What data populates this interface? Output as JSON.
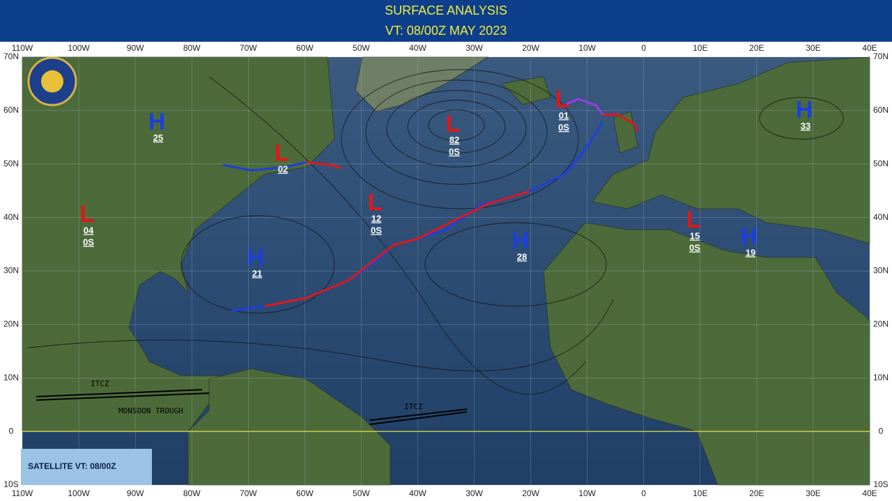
{
  "header": {
    "title": "SURFACE ANALYSIS",
    "valid_time": "VT: 08/00Z MAY 2023"
  },
  "longitude_labels": [
    "110W",
    "100W",
    "90W",
    "80W",
    "70W",
    "60W",
    "50W",
    "40W",
    "30W",
    "20W",
    "10W",
    "0",
    "10E",
    "20E",
    "30E",
    "40E"
  ],
  "latitude_labels": [
    "70N",
    "60N",
    "50N",
    "40N",
    "30N",
    "20N",
    "10N",
    "0",
    "10S"
  ],
  "systems": [
    {
      "symbol": "H",
      "value": "25"
    },
    {
      "symbol": "L",
      "value": "02"
    },
    {
      "symbol": "L",
      "value": "82",
      "motion": "0S"
    },
    {
      "symbol": "L",
      "value": "01",
      "motion": "0S"
    },
    {
      "symbol": "H",
      "value": "33"
    },
    {
      "symbol": "L",
      "value": "04",
      "motion": "0S"
    },
    {
      "symbol": "L",
      "value": "12",
      "motion": "0S"
    },
    {
      "symbol": "H",
      "value": "21"
    },
    {
      "symbol": "H",
      "value": "28"
    },
    {
      "symbol": "L",
      "value": "15",
      "motion": "0S"
    },
    {
      "symbol": "H",
      "value": "19"
    }
  ],
  "features": [
    "ITCZ",
    "MONSOON TROUGH",
    "ITCZ"
  ],
  "satellite_time": "SATELLITE VT: 08/00Z"
}
